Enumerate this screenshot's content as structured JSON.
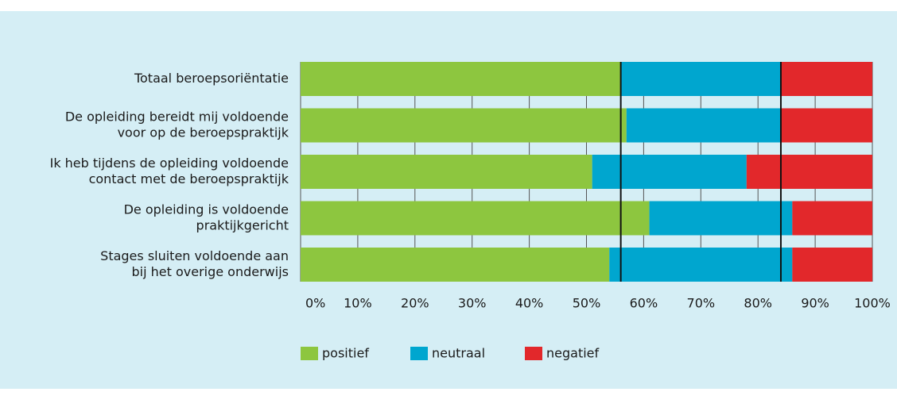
{
  "chart_data": {
    "type": "stacked-bar-horizontal",
    "categories": [
      [
        "Totaal beroepsoriëntatie"
      ],
      [
        "De opleiding bereidt mij voldoende",
        "voor op de beroepspraktijk"
      ],
      [
        "Ik heb tijdens de opleiding voldoende",
        "contact met de beroepspraktijk"
      ],
      [
        "De opleiding is voldoende",
        "praktijkgericht"
      ],
      [
        "Stages sluiten voldoende aan",
        "bij het overige onderwijs"
      ]
    ],
    "series": [
      {
        "name": "positief",
        "color": "#8dc63f",
        "values": [
          56,
          57,
          51,
          61,
          54
        ]
      },
      {
        "name": "neutraal",
        "color": "#00a6cf",
        "values": [
          28,
          27,
          27,
          25,
          32
        ]
      },
      {
        "name": "negatief",
        "color": "#e2282b",
        "values": [
          16,
          16,
          22,
          14,
          14
        ]
      }
    ],
    "xlim": [
      0,
      100
    ],
    "xticks": [
      {
        "value": 0,
        "label": "0%"
      },
      {
        "value": 10,
        "label": "10%"
      },
      {
        "value": 20,
        "label": "20%"
      },
      {
        "value": 30,
        "label": "30%"
      },
      {
        "value": 40,
        "label": "40%"
      },
      {
        "value": 50,
        "label": "50%"
      },
      {
        "value": 60,
        "label": "60%"
      },
      {
        "value": 70,
        "label": "70%"
      },
      {
        "value": 80,
        "label": "80%"
      },
      {
        "value": 90,
        "label": "90%"
      },
      {
        "value": 100,
        "label": "100%"
      }
    ],
    "grid": true
  }
}
